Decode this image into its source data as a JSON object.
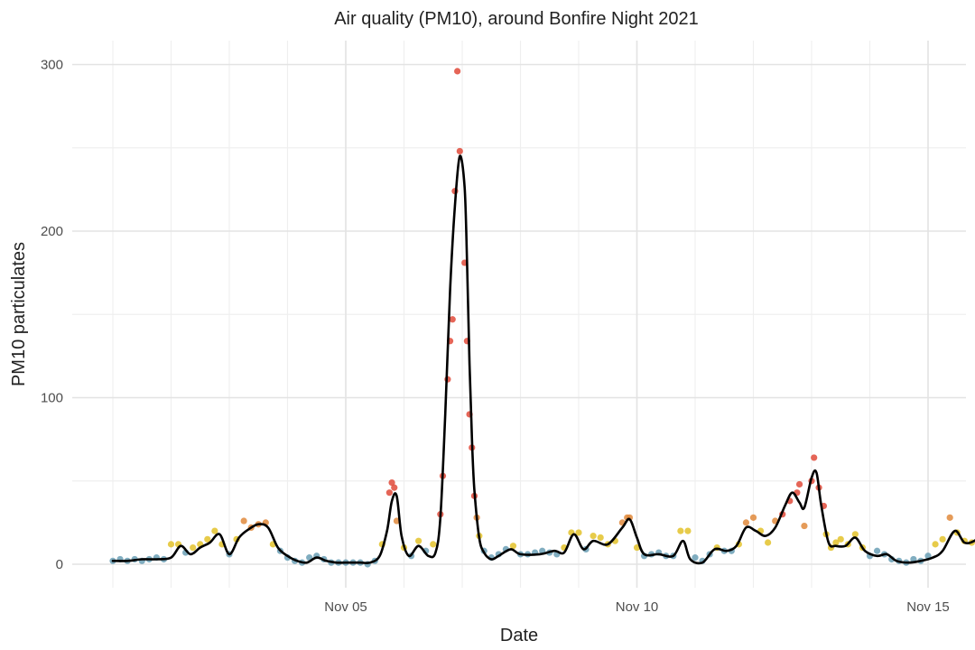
{
  "chart_data": {
    "type": "scatter",
    "title": "Air quality (PM10), around Bonfire Night 2021",
    "xlabel": "Date",
    "ylabel": "PM10 particulates",
    "xlim": [
      "2021-11-01T00:00",
      "2021-11-15T12:00"
    ],
    "ylim": [
      -14,
      305
    ],
    "x_ticks": [
      {
        "label": "Nov 05",
        "date": "2021-11-05T00:00"
      },
      {
        "label": "Nov 10",
        "date": "2021-11-10T00:00"
      },
      {
        "label": "Nov 15",
        "date": "2021-11-15T00:00"
      }
    ],
    "y_ticks": [
      0,
      100,
      200,
      300
    ],
    "grid": true,
    "legend": "none",
    "colors": {
      "low": "#6a9fb5",
      "moderate": "#e3c22a",
      "high": "#e08a3c",
      "very_high": "#e04a3a",
      "line": "#000000"
    },
    "series": [
      {
        "type": "scatter",
        "points": [
          [
            "2021-11-01T00:00",
            2
          ],
          [
            "2021-11-01T03:00",
            3
          ],
          [
            "2021-11-01T06:00",
            2
          ],
          [
            "2021-11-01T09:00",
            3
          ],
          [
            "2021-11-01T12:00",
            2
          ],
          [
            "2021-11-01T15:00",
            3
          ],
          [
            "2021-11-01T18:00",
            4
          ],
          [
            "2021-11-01T21:00",
            3
          ],
          [
            "2021-11-02T00:00",
            12
          ],
          [
            "2021-11-02T03:00",
            12
          ],
          [
            "2021-11-02T06:00",
            7
          ],
          [
            "2021-11-02T09:00",
            10
          ],
          [
            "2021-11-02T12:00",
            12
          ],
          [
            "2021-11-02T15:00",
            15
          ],
          [
            "2021-11-02T18:00",
            20
          ],
          [
            "2021-11-02T21:00",
            12
          ],
          [
            "2021-11-03T00:00",
            6
          ],
          [
            "2021-11-03T03:00",
            15
          ],
          [
            "2021-11-03T06:00",
            26
          ],
          [
            "2021-11-03T09:00",
            22
          ],
          [
            "2021-11-03T12:00",
            24
          ],
          [
            "2021-11-03T15:00",
            25
          ],
          [
            "2021-11-03T18:00",
            12
          ],
          [
            "2021-11-03T21:00",
            8
          ],
          [
            "2021-11-04T00:00",
            4
          ],
          [
            "2021-11-04T03:00",
            2
          ],
          [
            "2021-11-04T06:00",
            1
          ],
          [
            "2021-11-04T09:00",
            4
          ],
          [
            "2021-11-04T12:00",
            5
          ],
          [
            "2021-11-04T15:00",
            3
          ],
          [
            "2021-11-04T18:00",
            1
          ],
          [
            "2021-11-04T21:00",
            1
          ],
          [
            "2021-11-05T00:00",
            1
          ],
          [
            "2021-11-05T03:00",
            1
          ],
          [
            "2021-11-05T06:00",
            1
          ],
          [
            "2021-11-05T09:00",
            0
          ],
          [
            "2021-11-05T12:00",
            2
          ],
          [
            "2021-11-05T15:00",
            12
          ],
          [
            "2021-11-05T18:00",
            43
          ],
          [
            "2021-11-05T19:00",
            49
          ],
          [
            "2021-11-05T20:00",
            46
          ],
          [
            "2021-11-05T21:00",
            26
          ],
          [
            "2021-11-06T00:00",
            10
          ],
          [
            "2021-11-06T03:00",
            5
          ],
          [
            "2021-11-06T06:00",
            14
          ],
          [
            "2021-11-06T09:00",
            8
          ],
          [
            "2021-11-06T12:00",
            12
          ],
          [
            "2021-11-06T15:00",
            30
          ],
          [
            "2021-11-06T16:00",
            53
          ],
          [
            "2021-11-06T18:00",
            111
          ],
          [
            "2021-11-06T19:00",
            134
          ],
          [
            "2021-11-06T20:00",
            147
          ],
          [
            "2021-11-06T21:00",
            224
          ],
          [
            "2021-11-06T22:00",
            296
          ],
          [
            "2021-11-06T23:00",
            248
          ],
          [
            "2021-11-07T01:00",
            181
          ],
          [
            "2021-11-07T02:00",
            134
          ],
          [
            "2021-11-07T03:00",
            90
          ],
          [
            "2021-11-07T04:00",
            70
          ],
          [
            "2021-11-07T05:00",
            41
          ],
          [
            "2021-11-07T06:00",
            28
          ],
          [
            "2021-11-07T07:00",
            17
          ],
          [
            "2021-11-07T09:00",
            8
          ],
          [
            "2021-11-07T12:00",
            4
          ],
          [
            "2021-11-07T15:00",
            6
          ],
          [
            "2021-11-07T18:00",
            9
          ],
          [
            "2021-11-07T21:00",
            11
          ],
          [
            "2021-11-08T00:00",
            6
          ],
          [
            "2021-11-08T03:00",
            6
          ],
          [
            "2021-11-08T06:00",
            7
          ],
          [
            "2021-11-08T09:00",
            8
          ],
          [
            "2021-11-08T12:00",
            7
          ],
          [
            "2021-11-08T15:00",
            6
          ],
          [
            "2021-11-08T18:00",
            10
          ],
          [
            "2021-11-08T21:00",
            19
          ],
          [
            "2021-11-09T00:00",
            19
          ],
          [
            "2021-11-09T03:00",
            9
          ],
          [
            "2021-11-09T06:00",
            17
          ],
          [
            "2021-11-09T09:00",
            16
          ],
          [
            "2021-11-09T12:00",
            12
          ],
          [
            "2021-11-09T15:00",
            14
          ],
          [
            "2021-11-09T18:00",
            25
          ],
          [
            "2021-11-09T20:00",
            28
          ],
          [
            "2021-11-09T21:00",
            28
          ],
          [
            "2021-11-10T00:00",
            10
          ],
          [
            "2021-11-10T03:00",
            5
          ],
          [
            "2021-11-10T06:00",
            6
          ],
          [
            "2021-11-10T09:00",
            7
          ],
          [
            "2021-11-10T12:00",
            5
          ],
          [
            "2021-11-10T15:00",
            5
          ],
          [
            "2021-11-10T18:00",
            20
          ],
          [
            "2021-11-10T21:00",
            20
          ],
          [
            "2021-11-11T00:00",
            4
          ],
          [
            "2021-11-11T03:00",
            2
          ],
          [
            "2021-11-11T06:00",
            6
          ],
          [
            "2021-11-11T09:00",
            10
          ],
          [
            "2021-11-11T12:00",
            8
          ],
          [
            "2021-11-11T15:00",
            8
          ],
          [
            "2021-11-11T18:00",
            12
          ],
          [
            "2021-11-11T21:00",
            25
          ],
          [
            "2021-11-12T00:00",
            28
          ],
          [
            "2021-11-12T03:00",
            20
          ],
          [
            "2021-11-12T06:00",
            13
          ],
          [
            "2021-11-12T09:00",
            26
          ],
          [
            "2021-11-12T12:00",
            30
          ],
          [
            "2021-11-12T15:00",
            38
          ],
          [
            "2021-11-12T18:00",
            43
          ],
          [
            "2021-11-12T19:00",
            48
          ],
          [
            "2021-11-12T21:00",
            23
          ],
          [
            "2021-11-13T00:00",
            50
          ],
          [
            "2021-11-13T01:00",
            64
          ],
          [
            "2021-11-13T03:00",
            46
          ],
          [
            "2021-11-13T05:00",
            35
          ],
          [
            "2021-11-13T06:00",
            18
          ],
          [
            "2021-11-13T08:00",
            10
          ],
          [
            "2021-11-13T10:00",
            13
          ],
          [
            "2021-11-13T12:00",
            15
          ],
          [
            "2021-11-13T15:00",
            12
          ],
          [
            "2021-11-13T18:00",
            18
          ],
          [
            "2021-11-13T21:00",
            10
          ],
          [
            "2021-11-14T00:00",
            5
          ],
          [
            "2021-11-14T03:00",
            8
          ],
          [
            "2021-11-14T06:00",
            6
          ],
          [
            "2021-11-14T09:00",
            3
          ],
          [
            "2021-11-14T12:00",
            2
          ],
          [
            "2021-11-14T15:00",
            1
          ],
          [
            "2021-11-14T18:00",
            3
          ],
          [
            "2021-11-14T21:00",
            2
          ],
          [
            "2021-11-15T00:00",
            5
          ],
          [
            "2021-11-15T03:00",
            12
          ],
          [
            "2021-11-15T06:00",
            15
          ],
          [
            "2021-11-15T09:00",
            28
          ],
          [
            "2021-11-15T12:00",
            19
          ],
          [
            "2021-11-15T15:00",
            14
          ],
          [
            "2021-11-15T18:00",
            13
          ],
          [
            "2021-11-15T21:00",
            18
          ]
        ]
      },
      {
        "type": "line",
        "points": [
          [
            "2021-11-01T00:00",
            2
          ],
          [
            "2021-11-01T06:00",
            2
          ],
          [
            "2021-11-01T12:00",
            3
          ],
          [
            "2021-11-01T18:00",
            3
          ],
          [
            "2021-11-02T00:00",
            4
          ],
          [
            "2021-11-02T04:00",
            11
          ],
          [
            "2021-11-02T08:00",
            6
          ],
          [
            "2021-11-02T12:00",
            10
          ],
          [
            "2021-11-02T16:00",
            13
          ],
          [
            "2021-11-02T20:00",
            18
          ],
          [
            "2021-11-03T00:00",
            6
          ],
          [
            "2021-11-03T04:00",
            16
          ],
          [
            "2021-11-03T08:00",
            21
          ],
          [
            "2021-11-03T12:00",
            24
          ],
          [
            "2021-11-03T16:00",
            22
          ],
          [
            "2021-11-03T20:00",
            10
          ],
          [
            "2021-11-04T00:00",
            5
          ],
          [
            "2021-11-04T04:00",
            2
          ],
          [
            "2021-11-04T08:00",
            1
          ],
          [
            "2021-11-04T12:00",
            4
          ],
          [
            "2021-11-04T16:00",
            2
          ],
          [
            "2021-11-04T20:00",
            1
          ],
          [
            "2021-11-05T00:00",
            1
          ],
          [
            "2021-11-05T06:00",
            1
          ],
          [
            "2021-11-05T10:00",
            1
          ],
          [
            "2021-11-05T14:00",
            5
          ],
          [
            "2021-11-05T17:00",
            20
          ],
          [
            "2021-11-05T19:00",
            38
          ],
          [
            "2021-11-05T21:00",
            41
          ],
          [
            "2021-11-05T23:00",
            17
          ],
          [
            "2021-11-06T02:00",
            5
          ],
          [
            "2021-11-06T06:00",
            11
          ],
          [
            "2021-11-06T10:00",
            5
          ],
          [
            "2021-11-06T13:00",
            7
          ],
          [
            "2021-11-06T15:00",
            28
          ],
          [
            "2021-11-06T17:00",
            90
          ],
          [
            "2021-11-06T19:00",
            165
          ],
          [
            "2021-11-06T21:00",
            215
          ],
          [
            "2021-11-06T23:00",
            245
          ],
          [
            "2021-11-07T01:00",
            226
          ],
          [
            "2021-11-07T02:00",
            180
          ],
          [
            "2021-11-07T03:00",
            120
          ],
          [
            "2021-11-07T04:00",
            75
          ],
          [
            "2021-11-07T05:00",
            45
          ],
          [
            "2021-11-07T07:00",
            16
          ],
          [
            "2021-11-07T09:00",
            7
          ],
          [
            "2021-11-07T12:00",
            3
          ],
          [
            "2021-11-07T15:00",
            5
          ],
          [
            "2021-11-07T20:00",
            9
          ],
          [
            "2021-11-08T00:00",
            6
          ],
          [
            "2021-11-08T08:00",
            6
          ],
          [
            "2021-11-08T14:00",
            8
          ],
          [
            "2021-11-08T18:00",
            7
          ],
          [
            "2021-11-08T22:00",
            18
          ],
          [
            "2021-11-09T02:00",
            9
          ],
          [
            "2021-11-09T06:00",
            14
          ],
          [
            "2021-11-09T12:00",
            12
          ],
          [
            "2021-11-09T18:00",
            22
          ],
          [
            "2021-11-09T21:00",
            27
          ],
          [
            "2021-11-10T00:00",
            16
          ],
          [
            "2021-11-10T03:00",
            6
          ],
          [
            "2021-11-10T09:00",
            6
          ],
          [
            "2021-11-10T15:00",
            5
          ],
          [
            "2021-11-10T19:00",
            14
          ],
          [
            "2021-11-10T22:00",
            3
          ],
          [
            "2021-11-11T03:00",
            1
          ],
          [
            "2021-11-11T08:00",
            9
          ],
          [
            "2021-11-11T13:00",
            8
          ],
          [
            "2021-11-11T17:00",
            11
          ],
          [
            "2021-11-11T21:00",
            22
          ],
          [
            "2021-11-12T01:00",
            20
          ],
          [
            "2021-11-12T05:00",
            17
          ],
          [
            "2021-11-12T09:00",
            22
          ],
          [
            "2021-11-12T13:00",
            35
          ],
          [
            "2021-11-12T16:00",
            43
          ],
          [
            "2021-11-12T19:00",
            37
          ],
          [
            "2021-11-12T21:00",
            34
          ],
          [
            "2021-11-13T00:00",
            52
          ],
          [
            "2021-11-13T02:00",
            55
          ],
          [
            "2021-11-13T04:00",
            35
          ],
          [
            "2021-11-13T07:00",
            13
          ],
          [
            "2021-11-13T10:00",
            11
          ],
          [
            "2021-11-13T14:00",
            11
          ],
          [
            "2021-11-13T18:00",
            16
          ],
          [
            "2021-11-13T22:00",
            8
          ],
          [
            "2021-11-14T03:00",
            5
          ],
          [
            "2021-11-14T07:00",
            6
          ],
          [
            "2021-11-14T11:00",
            2
          ],
          [
            "2021-11-14T16:00",
            1
          ],
          [
            "2021-11-14T21:00",
            2
          ],
          [
            "2021-11-15T02:00",
            4
          ],
          [
            "2021-11-15T06:00",
            8
          ],
          [
            "2021-11-15T11:00",
            20
          ],
          [
            "2021-11-15T15:00",
            13
          ],
          [
            "2021-11-15T19:00",
            14
          ],
          [
            "2021-11-15T22:00",
            18
          ]
        ]
      }
    ]
  }
}
